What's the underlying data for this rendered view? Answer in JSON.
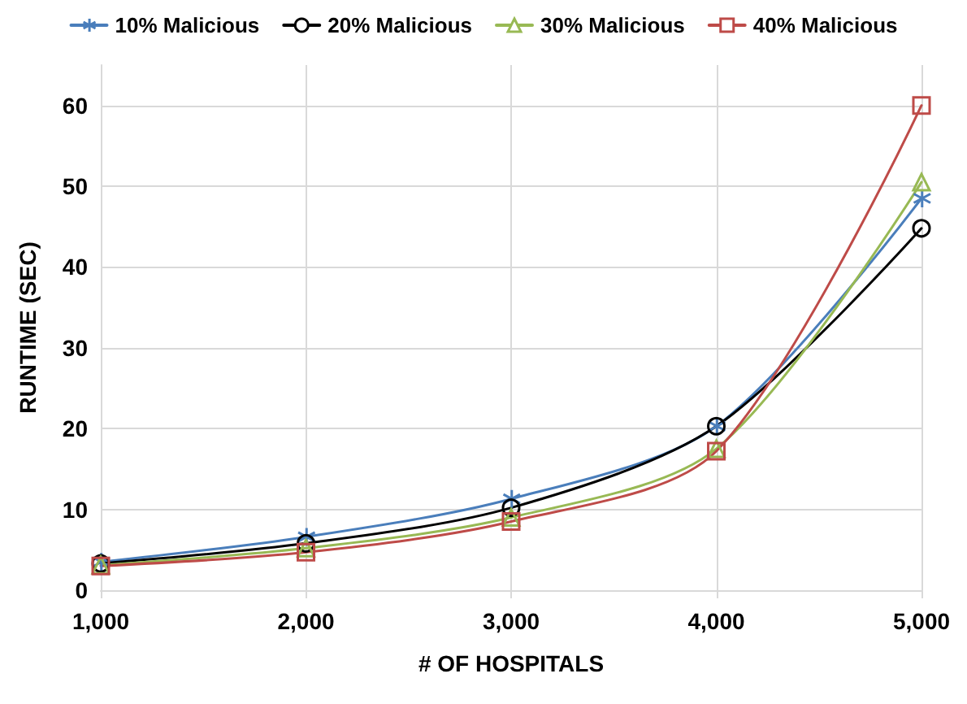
{
  "chart_data": {
    "type": "line",
    "xlabel": "# OF HOSPITALS",
    "ylabel": "RUNTIME (SEC)",
    "x": [
      1000,
      2000,
      3000,
      4000,
      5000
    ],
    "series": [
      {
        "name": "10% Malicious",
        "color": "#4a7ebb",
        "marker": "cross",
        "values": [
          3.5,
          6.6,
          11.3,
          20.3,
          48.5
        ]
      },
      {
        "name": "20% Malicious",
        "color": "#000000",
        "marker": "circle",
        "values": [
          3.3,
          5.8,
          10.2,
          20.3,
          44.8
        ]
      },
      {
        "name": "30% Malicious",
        "color": "#98b954",
        "marker": "triangle",
        "values": [
          3.1,
          5.2,
          9.0,
          17.5,
          50.5
        ]
      },
      {
        "name": "40% Malicious",
        "color": "#be4b48",
        "marker": "square",
        "values": [
          3.0,
          4.7,
          8.5,
          17.2,
          60.0
        ]
      }
    ],
    "xlim": [
      1000,
      5000
    ],
    "xticks": [
      {
        "value": 1000,
        "label": "1,000"
      },
      {
        "value": 2000,
        "label": "2,000"
      },
      {
        "value": 3000,
        "label": "3,000"
      },
      {
        "value": 4000,
        "label": "4,000"
      },
      {
        "value": 5000,
        "label": "5,000"
      }
    ],
    "ylim": [
      0,
      65
    ],
    "yticks": [
      0,
      10,
      20,
      30,
      40,
      50,
      60
    ],
    "grid": true,
    "legend": "top"
  }
}
